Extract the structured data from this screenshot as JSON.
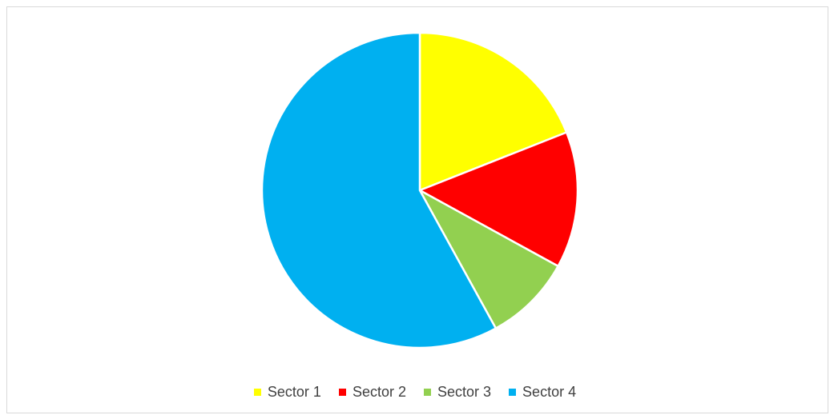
{
  "chart_data": {
    "type": "pie",
    "categories": [
      "Sector 1",
      "Sector 2",
      "Sector 3",
      "Sector 4"
    ],
    "values": [
      19,
      14,
      9,
      58
    ],
    "colors": [
      "#ffff00",
      "#ff0000",
      "#92d050",
      "#00b0f0"
    ],
    "title": "",
    "legend_position": "bottom",
    "start_angle_deg": 0,
    "direction": "clockwise"
  }
}
